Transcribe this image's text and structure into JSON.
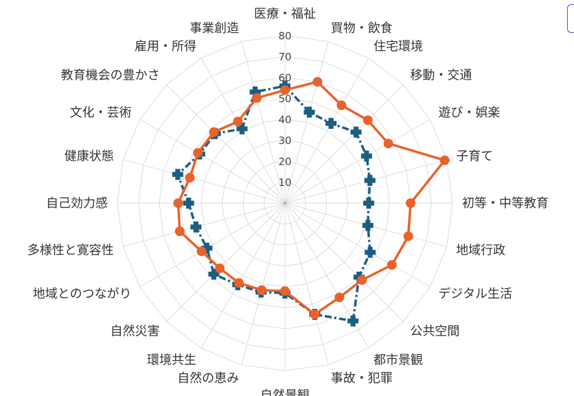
{
  "chart_data": {
    "type": "radar",
    "categories": [
      "医療・福祉",
      "買物・飲食",
      "住宅環境",
      "移動・交通",
      "遊び・娯楽",
      "子育て",
      "初等・中等教育",
      "地域行政",
      "デジタル生活",
      "公共空間",
      "都市景観",
      "事故・犯罪",
      "自然景観",
      "自然の恵み",
      "環境共生",
      "自然災害",
      "地域とのつながり",
      "多様性と寛容性",
      "自己効力感",
      "健康状態",
      "文化・芸術",
      "教育機会の豊かさ",
      "雇用・所得",
      "事業創造"
    ],
    "ticks": [
      10,
      20,
      30,
      40,
      50,
      60,
      70,
      80
    ],
    "rlim": [
      0,
      80
    ],
    "grid": true,
    "series": [
      {
        "values": [
          54,
          60,
          54,
          56,
          57,
          79,
          60,
          61,
          59,
          52,
          52,
          55,
          42,
          43,
          44,
          44,
          46,
          52,
          51,
          47,
          48,
          48,
          45,
          52
        ]
      },
      {
        "values": [
          56,
          45,
          44,
          48,
          45,
          42,
          40,
          41,
          47,
          50,
          65,
          55,
          43,
          44,
          45,
          48,
          43,
          44,
          46,
          53,
          47,
          47,
          41,
          55
        ]
      }
    ],
    "colors": {
      "series1": "#e8622c",
      "series2": "#1b5e82",
      "grid": "#dcdcdc",
      "text": "#333333",
      "legend_border": "#4a55d6"
    }
  }
}
